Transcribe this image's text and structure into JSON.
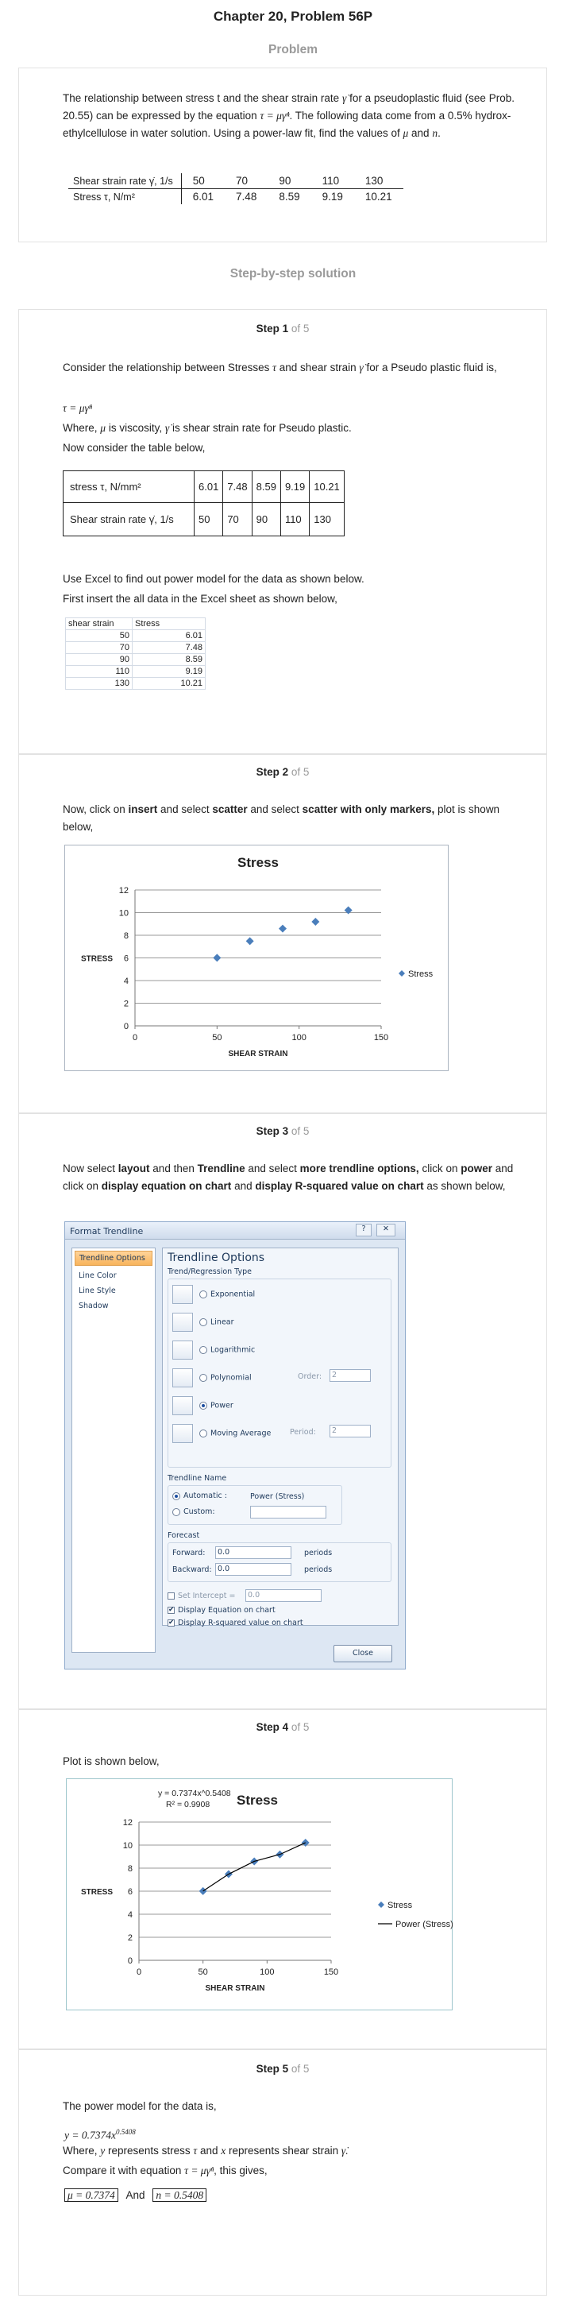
{
  "header": {
    "title": "Chapter 20, Problem 56P",
    "problem_heading": "Problem",
    "solution_heading": "Step-by-step solution"
  },
  "problem": {
    "text1": "The relationship between stress t and the shear strain rate",
    "text2": "for a pseudoplastic fluid (see",
    "text3": "Prob. 20.55) can be expressed by the equation",
    "text4": ". The following data come from a",
    "text5": "0.5% hydrox-ethylcellulose in water solution. Using a power-law fit, find the values of",
    "text6": "and",
    "gamma_dot": "γ̇",
    "tau": "τ",
    "mu": "μ",
    "n": "n",
    "equation": "τ = μγ̇ⁿ",
    "table": {
      "row1_label": "Shear strain rate γ̇, 1/s",
      "row2_label": "Stress τ, N/m²",
      "row1": [
        "50",
        "70",
        "90",
        "110",
        "130"
      ],
      "row2": [
        "6.01",
        "7.48",
        "8.59",
        "9.19",
        "10.21"
      ]
    }
  },
  "steps": [
    {
      "label": "Step 1",
      "of": "of 5"
    },
    {
      "label": "Step 2",
      "of": "of 5"
    },
    {
      "label": "Step 3",
      "of": "of 5"
    },
    {
      "label": "Step 4",
      "of": "of 5"
    },
    {
      "label": "Step 5",
      "of": "of 5"
    }
  ],
  "step1": {
    "line1a": "Consider the relationship between Stresses",
    "line1b": "and shear strain",
    "line1c": "for a Pseudo plastic",
    "line1d": "fluid is,",
    "equation": "τ = μγ̇ⁿ",
    "where_a": "Where,",
    "where_b": "is viscosity,",
    "where_c": "is shear strain rate for Pseudo plastic.",
    "line_table": "Now consider the table below,",
    "table": {
      "row1_label": "stress τ, N/mm²",
      "row2_label": "Shear strain rate γ̇, 1/s",
      "row1": [
        "6.01",
        "7.48",
        "8.59",
        "9.19",
        "10.21"
      ],
      "row2": [
        "50",
        "70",
        "90",
        "110",
        "130"
      ]
    },
    "line_excel1": "Use Excel to find out power model for the data as shown below.",
    "line_excel2": "First insert the all data in the Excel sheet as shown below,",
    "excel": {
      "headers": [
        "shear strain",
        "Stress"
      ],
      "rows": [
        [
          "50",
          "6.01"
        ],
        [
          "70",
          "7.48"
        ],
        [
          "90",
          "8.59"
        ],
        [
          "110",
          "9.19"
        ],
        [
          "130",
          "10.21"
        ]
      ]
    }
  },
  "step2": {
    "t1": "Now, click on ",
    "t2": "insert",
    "t3": " and select ",
    "t4": "scatter",
    "t5": " and select ",
    "t6": "scatter with only markers,",
    "t7": " plot is",
    "t8": "shown below,"
  },
  "chart_data": [
    {
      "type": "scatter",
      "title": "Stress",
      "xlabel": "SHEAR STRAIN",
      "ylabel": "STRESS",
      "xlim": [
        0,
        150
      ],
      "ylim": [
        0,
        12
      ],
      "xticks": [
        "0",
        "50",
        "100",
        "150"
      ],
      "yticks": [
        "0",
        "2",
        "4",
        "6",
        "8",
        "10",
        "12"
      ],
      "grid": "horizontal",
      "legend": "right",
      "series": [
        {
          "name": "Stress",
          "x": [
            50,
            70,
            90,
            110,
            130
          ],
          "y": [
            6.01,
            7.48,
            8.59,
            9.19,
            10.21
          ]
        }
      ]
    },
    {
      "type": "scatter",
      "title": "Stress",
      "xlabel": "SHEAR STRAIN",
      "ylabel": "STRESS",
      "xlim": [
        0,
        150
      ],
      "ylim": [
        0,
        12
      ],
      "xticks": [
        "0",
        "50",
        "100",
        "150"
      ],
      "yticks": [
        "0",
        "2",
        "4",
        "6",
        "8",
        "10",
        "12"
      ],
      "grid": "horizontal",
      "legend": "right",
      "annotations": [
        "y = 0.7374x^0.5408",
        "R² = 0.9908"
      ],
      "series": [
        {
          "name": "Stress",
          "x": [
            50,
            70,
            90,
            110,
            130
          ],
          "y": [
            6.01,
            7.48,
            8.59,
            9.19,
            10.21
          ]
        },
        {
          "name": "Power (Stress)",
          "type": "line",
          "x": [
            50,
            70,
            90,
            110,
            130
          ],
          "y": [
            6.01,
            7.48,
            8.59,
            9.19,
            10.21
          ]
        }
      ]
    }
  ],
  "step3": {
    "t1": "Now select ",
    "t2": "layout",
    "t3": " and then ",
    "t4": "Trendline",
    "t5": " and select ",
    "t6": "more trendline options,",
    "t7": " click on",
    "t8": "power",
    "t9": " and click on ",
    "t10": "display equation on chart",
    "t11": " and ",
    "t12": "display R-squared value on chart",
    "t13": "as shown below,",
    "dialog": {
      "title": "Format Trendline",
      "help": "?",
      "close_x": "✕",
      "nav": [
        "Trendline Options",
        "Line Color",
        "Line Style",
        "Shadow"
      ],
      "heading": "Trendline Options",
      "type_heading": "Trend/Regression Type",
      "types": [
        "Exponential",
        "Linear",
        "Logarithmic",
        "Polynomial",
        "Power",
        "Moving Average"
      ],
      "order_label": "Order:",
      "order_value": "2",
      "period_label": "Period:",
      "period_value": "2",
      "name_heading": "Trendline Name",
      "automatic": "Automatic :",
      "automatic_value": "Power (Stress)",
      "custom": "Custom:",
      "forecast_heading": "Forecast",
      "forward": "Forward:",
      "forward_value": "0.0",
      "backward": "Backward:",
      "backward_value": "0.0",
      "periods": "periods",
      "set_intercept": "Set Intercept =",
      "intercept_value": "0.0",
      "display_eq": "Display Equation on chart",
      "display_r2": "Display R-squared value on chart",
      "close_button": "Close"
    }
  },
  "step4": {
    "t1": "Plot is shown below,"
  },
  "step5": {
    "t1": "The power model for the data is,",
    "equation": "y = 0.7374x",
    "exponent": "0.5408",
    "where_a": "Where,",
    "where_b": "represents stress",
    "where_c": "and",
    "where_d": "represents shear strain",
    "y": "y",
    "x": "x",
    "tau": "τ",
    "gamma_dot": "γ̇.",
    "compare_a": "Compare it with equation",
    "compare_eq": "τ = μγ̇ⁿ",
    "compare_b": ", this gives,",
    "answer1": "μ = 0.7374",
    "and": "And",
    "answer2": "n = 0.5408"
  }
}
